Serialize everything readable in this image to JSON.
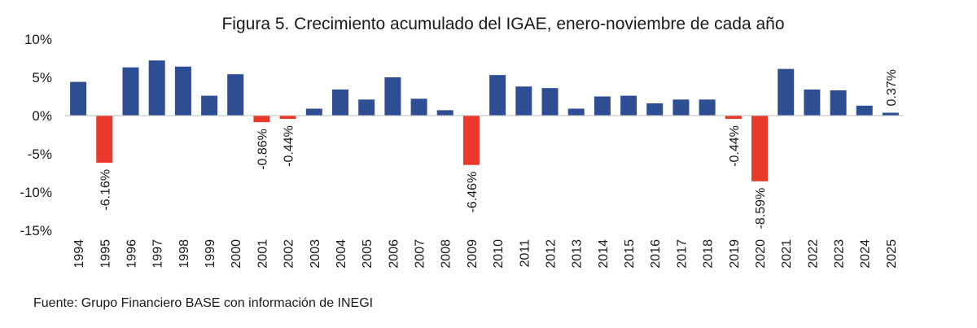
{
  "chart_data": {
    "type": "bar",
    "title": "Figura 5. Crecimiento acumulado del IGAE, enero-noviembre de cada año",
    "xlabel": "",
    "ylabel": "",
    "ylim": [
      -15,
      10
    ],
    "yticks": [
      10,
      5,
      0,
      -5,
      -10,
      -15
    ],
    "ytick_labels": [
      "10%",
      "5%",
      "0%",
      "-5%",
      "-10%",
      "-15%"
    ],
    "grid": false,
    "legend": "none",
    "colors": {
      "positive": "#2e4e94",
      "negative": "#e8392b"
    },
    "categories": [
      "1994",
      "1995",
      "1996",
      "1997",
      "1998",
      "1999",
      "2000",
      "2001",
      "2002",
      "2003",
      "2004",
      "2005",
      "2006",
      "2007",
      "2008",
      "2009",
      "2010",
      "2011",
      "2012",
      "2013",
      "2014",
      "2015",
      "2016",
      "2017",
      "2018",
      "2019",
      "2020",
      "2021",
      "2022",
      "2023",
      "2024",
      "2025"
    ],
    "values": [
      4.4,
      -6.16,
      6.3,
      7.2,
      6.4,
      2.6,
      5.4,
      -0.86,
      -0.44,
      0.9,
      3.4,
      2.1,
      5.0,
      2.2,
      0.7,
      -6.46,
      5.3,
      3.8,
      3.6,
      0.9,
      2.5,
      2.6,
      1.6,
      2.1,
      2.1,
      -0.44,
      -8.59,
      6.1,
      3.4,
      3.3,
      1.3,
      0.37
    ],
    "data_labels": [
      {
        "index": 1,
        "text": "-6.16%"
      },
      {
        "index": 7,
        "text": "-0.86%"
      },
      {
        "index": 8,
        "text": "-0.44%"
      },
      {
        "index": 15,
        "text": "-6.46%"
      },
      {
        "index": 25,
        "text": "-0.44%"
      },
      {
        "index": 26,
        "text": "-8.59%"
      },
      {
        "index": 31,
        "text": "0.37%"
      }
    ]
  },
  "source": "Fuente: Grupo Financiero BASE con información de INEGI"
}
